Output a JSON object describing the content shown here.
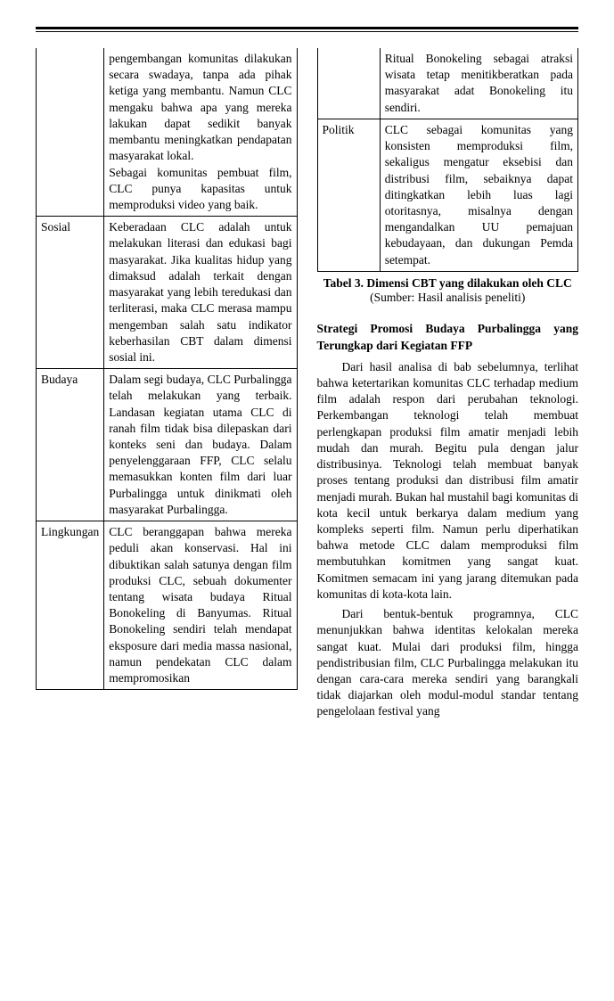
{
  "leftTable": {
    "rows": [
      {
        "label": "",
        "text": "pengembangan komunitas dilakukan secara swadaya, tanpa ada pihak ketiga yang membantu. Namun CLC mengaku bahwa apa yang mereka lakukan dapat sedikit banyak membantu meningkatkan pendapatan masyarakat lokal.\nSebagai komunitas pembuat film, CLC punya kapasitas untuk memproduksi video yang baik.",
        "continuation": true
      },
      {
        "label": "Sosial",
        "text": "Keberadaan CLC adalah untuk melakukan literasi dan edukasi bagi masyarakat. Jika kualitas hidup yang dimaksud adalah terkait dengan masyarakat yang lebih teredukasi dan terliterasi, maka CLC merasa mampu mengemban salah satu indikator keberhasilan CBT dalam dimensi sosial ini.",
        "continuation": false
      },
      {
        "label": "Budaya",
        "text": "Dalam segi budaya, CLC Purbalingga telah melakukan yang terbaik. Landasan kegiatan utama CLC di ranah film tidak bisa dilepaskan dari konteks seni dan budaya. Dalam penyelenggaraan FFP, CLC selalu memasukkan konten film dari luar Purbalingga untuk dinikmati oleh masyarakat Purbalingga.",
        "continuation": false
      },
      {
        "label": "Lingkungan",
        "text": "CLC beranggapan bahwa mereka peduli akan konservasi. Hal ini dibuktikan salah satunya dengan film produksi CLC, sebuah dokumenter tentang wisata budaya Ritual Bonokeling di Banyumas. Ritual Bonokeling sendiri telah mendapat eksposure dari media massa nasional, namun pendekatan CLC dalam mempromosikan",
        "continuation": false
      }
    ]
  },
  "rightTable": {
    "rows": [
      {
        "label": "",
        "text": "Ritual Bonokeling sebagai atraksi wisata tetap menitikberatkan pada masyarakat adat Bonokeling itu sendiri.",
        "continuation": true
      },
      {
        "label": "Politik",
        "text": "CLC sebagai komunitas yang konsisten memproduksi film, sekaligus mengatur eksebisi dan distribusi film, sebaiknya dapat ditingkatkan lebih luas lagi otoritasnya, misalnya dengan mengandalkan UU pemajuan kebudayaan, dan dukungan Pemda setempat.",
        "continuation": false
      }
    ]
  },
  "caption": {
    "title": "Tabel 3. Dimensi CBT yang dilakukan oleh CLC",
    "source": "(Sumber: Hasil analisis peneliti)"
  },
  "heading": "Strategi Promosi Budaya Purbalingga yang Terungkap dari Kegiatan FFP",
  "paragraphs": [
    "Dari hasil analisa di bab sebelumnya, terlihat bahwa ketertarikan komunitas CLC terhadap medium film adalah respon dari perubahan teknologi. Perkembangan teknologi telah membuat perlengkapan produksi film amatir menjadi lebih mudah dan murah. Begitu pula dengan jalur distribusinya. Teknologi telah membuat banyak proses tentang produksi dan distribusi film amatir menjadi murah. Bukan hal mustahil bagi komunitas di kota kecil untuk berkarya dalam medium yang kompleks seperti film. Namun perlu diperhatikan bahwa metode CLC dalam memproduksi film membutuhkan komitmen yang sangat kuat. Komitmen semacam ini yang jarang ditemukan pada komunitas di kota-kota lain.",
    "Dari bentuk-bentuk programnya, CLC menunjukkan bahwa identitas kelokalan mereka sangat kuat. Mulai dari produksi film, hingga pendistribusian film, CLC Purbalingga melakukan itu dengan cara-cara mereka sendiri yang barangkali tidak diajarkan oleh modul-modul standar tentang pengelolaan festival yang"
  ]
}
